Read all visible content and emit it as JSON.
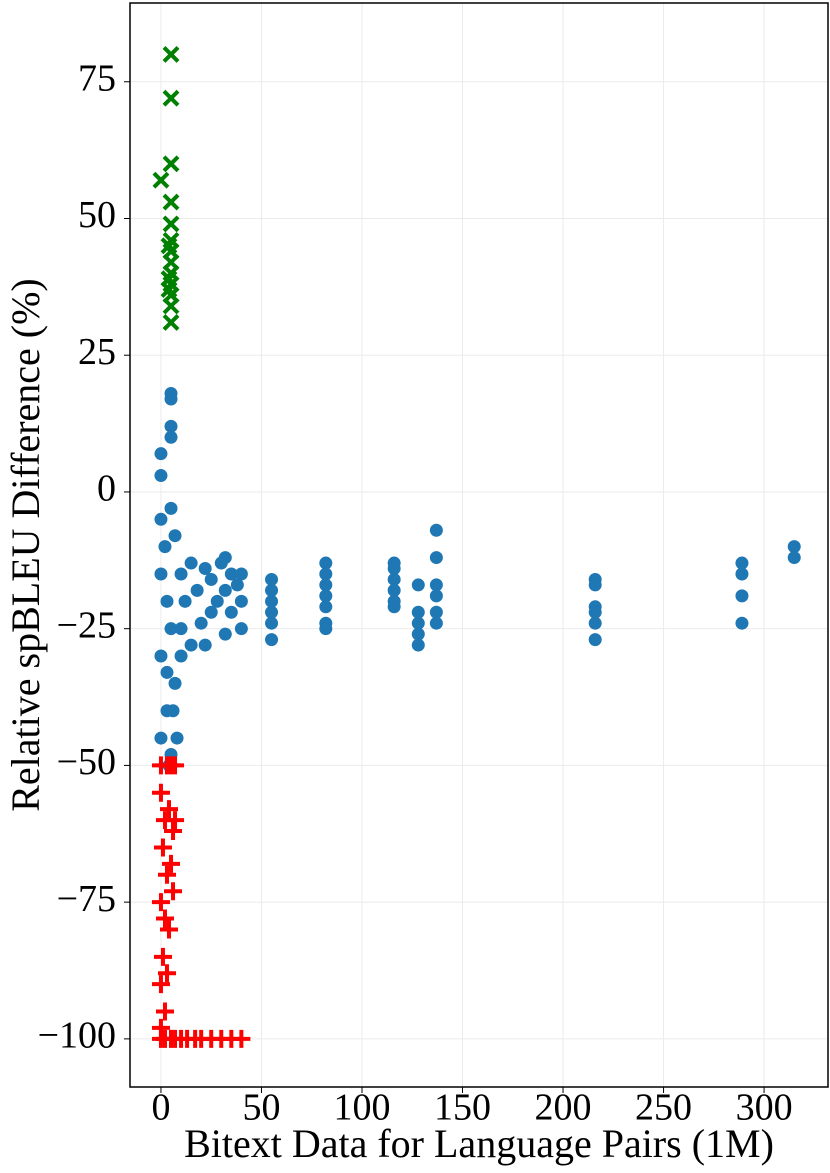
{
  "chart_data": {
    "type": "scatter",
    "x_label": "Bitext Data for Language Pairs (1M)",
    "y_label": "Relative spBLEU Difference (%)",
    "xlim": [
      -15.4,
      331.8
    ],
    "ylim": [
      -108.8,
      89.4
    ],
    "xticks": [
      0,
      50,
      100,
      150,
      200,
      250,
      300
    ],
    "yticks": [
      {
        "value": -100,
        "label": "−100"
      },
      {
        "value": -75,
        "label": "−75"
      },
      {
        "value": -50,
        "label": "−50"
      },
      {
        "value": -25,
        "label": "−25"
      },
      0,
      25,
      50,
      75
    ],
    "grid": true,
    "series": [
      {
        "color": "#1f77b4",
        "marker": "circle",
        "x": [
          0,
          0,
          0,
          0,
          0,
          0,
          2,
          3,
          3,
          5,
          5,
          5,
          5,
          5,
          5,
          5,
          7,
          7,
          8,
          10,
          10,
          10,
          12,
          15,
          15,
          18,
          20,
          22,
          22,
          25,
          25,
          28,
          30,
          32,
          32,
          32,
          35,
          35,
          38,
          40,
          40,
          40,
          4,
          6,
          3,
          55,
          55,
          55,
          55,
          55,
          55,
          82,
          82,
          82,
          82,
          82,
          82,
          82,
          116,
          116,
          116,
          116,
          116,
          116,
          128,
          128,
          128,
          128,
          128,
          137,
          137,
          137,
          137,
          137,
          137,
          216,
          216,
          216,
          216,
          216,
          216,
          289,
          289,
          289,
          289,
          315,
          315
        ],
        "values": [
          7,
          3,
          -5,
          -15,
          -30,
          -45,
          -10,
          -20,
          -40,
          18,
          17,
          12,
          10,
          -3,
          -25,
          -48,
          -8,
          -35,
          -45,
          -15,
          -25,
          -30,
          -20,
          -13,
          -28,
          -18,
          -24,
          -14,
          -28,
          -16,
          -22,
          -20,
          -13,
          -12,
          -18,
          -26,
          -15,
          -22,
          -17,
          -15,
          -20,
          -25,
          -50,
          -40,
          -33,
          -16,
          -18,
          -20,
          -22,
          -24,
          -27,
          -13,
          -15,
          -17,
          -19,
          -21,
          -24,
          -25,
          -13,
          -14,
          -16,
          -18,
          -20,
          -21,
          -17,
          -22,
          -24,
          -26,
          -28,
          -7,
          -12,
          -17,
          -19,
          -22,
          -24,
          -16,
          -17,
          -21,
          -22,
          -24,
          -27,
          -13,
          -15,
          -19,
          -24,
          -10,
          -12
        ]
      },
      {
        "color": "#008000",
        "marker": "x",
        "x": [
          0,
          5,
          5,
          5,
          5,
          5,
          5,
          5,
          5,
          5,
          5,
          5,
          5,
          5,
          4,
          4,
          4
        ],
        "values": [
          57,
          80,
          72,
          60,
          53,
          49,
          46,
          44,
          42,
          40,
          38,
          36,
          34,
          31,
          45,
          39,
          37
        ]
      },
      {
        "color": "#ff0000",
        "marker": "plus",
        "x": [
          0,
          3,
          5,
          7,
          0,
          2,
          4,
          6,
          1,
          3,
          5,
          0,
          2,
          4,
          1,
          3,
          0,
          2,
          0,
          0,
          2,
          5,
          7,
          10,
          13,
          17,
          20,
          25,
          30,
          35,
          40,
          6,
          7
        ],
        "values": [
          -50,
          -50,
          -50,
          -50,
          -55,
          -60,
          -58,
          -62,
          -65,
          -70,
          -68,
          -75,
          -78,
          -80,
          -85,
          -88,
          -90,
          -95,
          -98,
          -100,
          -100,
          -100,
          -100,
          -100,
          -100,
          -100,
          -100,
          -100,
          -100,
          -100,
          -100,
          -73,
          -60
        ]
      }
    ]
  }
}
